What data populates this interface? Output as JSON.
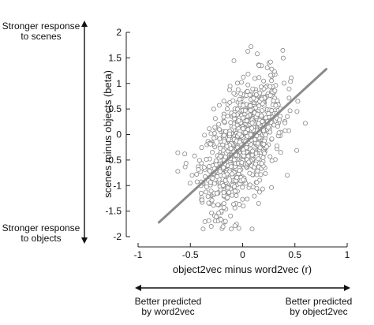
{
  "chart_data": {
    "type": "scatter",
    "title": "",
    "xlabel": "object2vec minus word2vec (r)",
    "ylabel": "scenes minus objects (beta)",
    "xlim": [
      -1,
      1
    ],
    "ylim": [
      -2,
      2
    ],
    "xticks": [
      "-1",
      "-0.5",
      "0",
      "0.5",
      "1"
    ],
    "yticks": [
      "-2",
      "-1.5",
      "-1",
      "-0.5",
      "0",
      "0.5",
      "1",
      "1.5",
      "2"
    ],
    "grid": false,
    "legend": "none",
    "colors": {
      "points": "#888888",
      "fit_line": "#8a8a8a",
      "axes": "#222222"
    },
    "fit_line": {
      "x": [
        -0.8,
        0.8
      ],
      "y": [
        -1.72,
        1.28
      ]
    },
    "scatter_cloud": {
      "n_points": 900,
      "x_range": [
        -0.62,
        0.62
      ],
      "y_range": [
        -1.85,
        1.72
      ],
      "notable_points": [
        {
          "x": 0.08,
          "y": 1.72
        },
        {
          "x": 0.14,
          "y": 1.58
        },
        {
          "x": -0.62,
          "y": -0.72
        },
        {
          "x": 0.6,
          "y": 0.22
        },
        {
          "x": -0.3,
          "y": -1.8
        },
        {
          "x": 0.52,
          "y": 0.45
        }
      ]
    },
    "annotations": {
      "top_left": [
        "Stronger response",
        "to scenes"
      ],
      "bottom_left": [
        "Stronger response",
        "to objects"
      ],
      "bottom_left_x": [
        "Better predicted",
        "by word2vec"
      ],
      "bottom_right_x": [
        "Better predicted",
        "by object2vec"
      ]
    }
  }
}
